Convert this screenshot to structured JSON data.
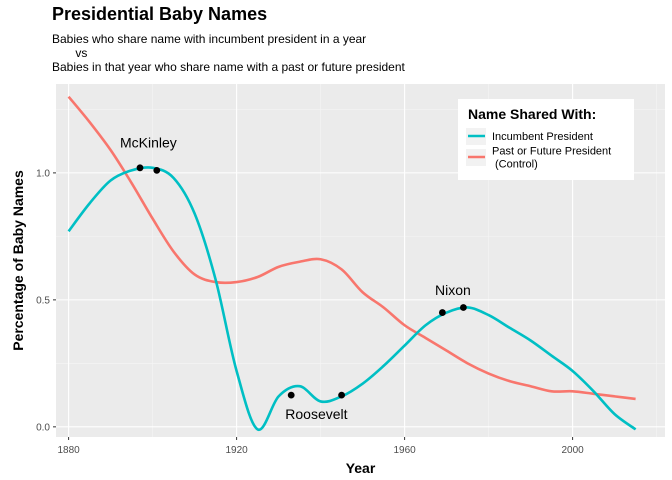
{
  "chart_data": {
    "type": "line",
    "title": "Presidential Baby Names",
    "subtitle": "Babies who share name with incumbent president in a year\n       vs\nBabies in that year who share name with a past or future president",
    "xlabel": "Year",
    "ylabel": "Percentage of Baby Names",
    "xlim": [
      1877,
      2022
    ],
    "ylim": [
      -0.04,
      1.35
    ],
    "x_ticks": [
      "1880",
      "1920",
      "1960",
      "2000"
    ],
    "y_ticks": [
      "0.0",
      "0.5",
      "1.0"
    ],
    "grid": true,
    "legend": {
      "title": "Name Shared With:",
      "position": "top-right",
      "entries": [
        "Incumbent President",
        "Past or Future President\n(Control)"
      ]
    },
    "series": [
      {
        "name": "Incumbent President",
        "color": "#00BFC4",
        "x": [
          1880,
          1885,
          1890,
          1895,
          1900,
          1905,
          1910,
          1915,
          1920,
          1925,
          1930,
          1935,
          1940,
          1945,
          1950,
          1955,
          1960,
          1965,
          1970,
          1975,
          1980,
          1985,
          1990,
          1995,
          2000,
          2005,
          2010,
          2015
        ],
        "y": [
          0.77,
          0.88,
          0.97,
          1.01,
          1.02,
          0.98,
          0.84,
          0.58,
          0.22,
          -0.01,
          0.12,
          0.16,
          0.1,
          0.12,
          0.17,
          0.24,
          0.32,
          0.4,
          0.45,
          0.47,
          0.44,
          0.39,
          0.34,
          0.28,
          0.22,
          0.14,
          0.05,
          -0.01
        ]
      },
      {
        "name": "Past or Future President\n(Control)",
        "color": "#F8766D",
        "x": [
          1880,
          1885,
          1890,
          1895,
          1900,
          1905,
          1910,
          1915,
          1920,
          1925,
          1930,
          1935,
          1940,
          1945,
          1950,
          1955,
          1960,
          1965,
          1970,
          1975,
          1980,
          1985,
          1990,
          1995,
          2000,
          2005,
          2010,
          2015
        ],
        "y": [
          1.3,
          1.2,
          1.09,
          0.96,
          0.82,
          0.69,
          0.6,
          0.57,
          0.57,
          0.59,
          0.63,
          0.65,
          0.66,
          0.62,
          0.53,
          0.47,
          0.4,
          0.35,
          0.3,
          0.25,
          0.21,
          0.18,
          0.16,
          0.14,
          0.14,
          0.13,
          0.12,
          0.11
        ]
      }
    ],
    "points": [
      {
        "x": 1897,
        "y": 1.02
      },
      {
        "x": 1901,
        "y": 1.01
      },
      {
        "x": 1933,
        "y": 0.125
      },
      {
        "x": 1945,
        "y": 0.125
      },
      {
        "x": 1969,
        "y": 0.45
      },
      {
        "x": 1974,
        "y": 0.47
      }
    ],
    "annotations": [
      {
        "text": "McKinley",
        "x": 1899,
        "y": 1.1
      },
      {
        "text": "Roosevelt",
        "x": 1939,
        "y": 0.03
      },
      {
        "text": "Nixon",
        "x": 1971.5,
        "y": 0.52
      }
    ]
  }
}
